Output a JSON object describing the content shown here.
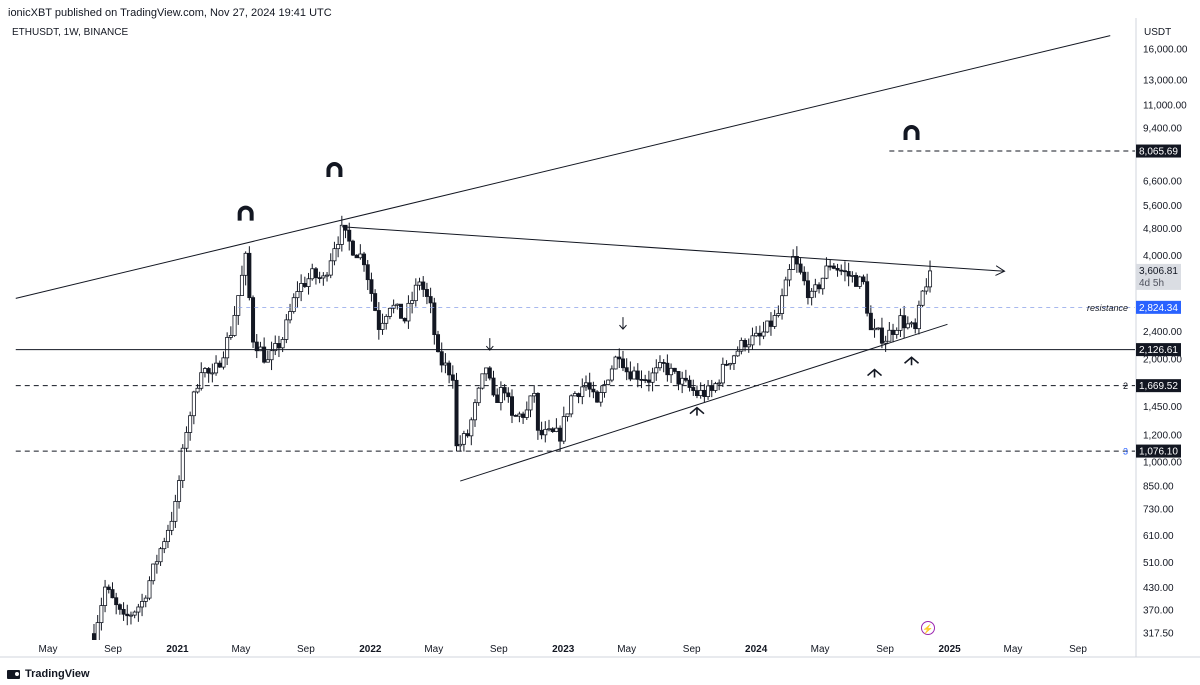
{
  "header": {
    "published": "ionicXBT published on TradingView.com, Nov 27, 2024 19:41 UTC",
    "symbol": "ETHUSDT, 1W, BINANCE",
    "currency": "USDT"
  },
  "footer": {
    "brand": "TradingView"
  },
  "chart_data": {
    "type": "candlestick",
    "symbol": "ETHUSDT",
    "interval": "1W",
    "exchange": "BINANCE",
    "scale": "log",
    "ylim": [
      300,
      18000
    ],
    "y_ticks": [
      {
        "value": 16000,
        "label": "16,000.00"
      },
      {
        "value": 13000,
        "label": "13,000.00"
      },
      {
        "value": 11000,
        "label": "11,000.00"
      },
      {
        "value": 9400,
        "label": "9,400.00"
      },
      {
        "value": 6600,
        "label": "6,600.00"
      },
      {
        "value": 5600,
        "label": "5,600.00"
      },
      {
        "value": 4800,
        "label": "4,800.00"
      },
      {
        "value": 4000,
        "label": "4,000.00"
      },
      {
        "value": 2400,
        "label": "2,400.00"
      },
      {
        "value": 2000,
        "label": "2,000.00"
      },
      {
        "value": 1450,
        "label": "1,450.00"
      },
      {
        "value": 1200,
        "label": "1,200.00"
      },
      {
        "value": 1000,
        "label": "1,000.00"
      },
      {
        "value": 850,
        "label": "850.00"
      },
      {
        "value": 730,
        "label": "730.00"
      },
      {
        "value": 610,
        "label": "610.00"
      },
      {
        "value": 510,
        "label": "510.00"
      },
      {
        "value": 430,
        "label": "430.00"
      },
      {
        "value": 370,
        "label": "370.00"
      },
      {
        "value": 317.5,
        "label": "317.50"
      }
    ],
    "x_ticks": [
      {
        "date": "2020-05-01",
        "label": "May",
        "bold": false
      },
      {
        "date": "2020-09-01",
        "label": "Sep",
        "bold": false
      },
      {
        "date": "2021-01-01",
        "label": "2021",
        "bold": true
      },
      {
        "date": "2021-05-01",
        "label": "May",
        "bold": false
      },
      {
        "date": "2021-09-01",
        "label": "Sep",
        "bold": false
      },
      {
        "date": "2022-01-01",
        "label": "2022",
        "bold": true
      },
      {
        "date": "2022-05-01",
        "label": "May",
        "bold": false
      },
      {
        "date": "2022-09-01",
        "label": "Sep",
        "bold": false
      },
      {
        "date": "2023-01-01",
        "label": "2023",
        "bold": true
      },
      {
        "date": "2023-05-01",
        "label": "May",
        "bold": false
      },
      {
        "date": "2023-09-01",
        "label": "Sep",
        "bold": false
      },
      {
        "date": "2024-01-01",
        "label": "2024",
        "bold": true
      },
      {
        "date": "2024-05-01",
        "label": "May",
        "bold": false
      },
      {
        "date": "2024-09-01",
        "label": "Sep",
        "bold": false
      },
      {
        "date": "2025-01-01",
        "label": "2025",
        "bold": true
      },
      {
        "date": "2025-05-01",
        "label": "May",
        "bold": false
      },
      {
        "date": "2025-09-01",
        "label": "Sep",
        "bold": false
      }
    ],
    "anchors": [
      {
        "date": "2020-07-27",
        "close": 316
      },
      {
        "date": "2020-08-17",
        "close": 430
      },
      {
        "date": "2020-09-21",
        "close": 345
      },
      {
        "date": "2020-10-26",
        "close": 390
      },
      {
        "date": "2020-11-23",
        "close": 520
      },
      {
        "date": "2020-12-28",
        "close": 740
      },
      {
        "date": "2021-01-18",
        "close": 1250
      },
      {
        "date": "2021-02-15",
        "close": 1900
      },
      {
        "date": "2021-03-08",
        "close": 1750
      },
      {
        "date": "2021-04-12",
        "close": 2400
      },
      {
        "date": "2021-05-10",
        "close": 3900
      },
      {
        "date": "2021-05-24",
        "close": 2300
      },
      {
        "date": "2021-06-21",
        "close": 1950
      },
      {
        "date": "2021-07-19",
        "close": 2300
      },
      {
        "date": "2021-08-16",
        "close": 3200
      },
      {
        "date": "2021-09-13",
        "close": 3500
      },
      {
        "date": "2021-10-04",
        "close": 3400
      },
      {
        "date": "2021-10-25",
        "close": 4300
      },
      {
        "date": "2021-11-08",
        "close": 4700
      },
      {
        "date": "2021-11-29",
        "close": 4200
      },
      {
        "date": "2021-12-20",
        "close": 3900
      },
      {
        "date": "2022-01-17",
        "close": 2500
      },
      {
        "date": "2022-02-07",
        "close": 2900
      },
      {
        "date": "2022-03-07",
        "close": 2600
      },
      {
        "date": "2022-04-04",
        "close": 3400
      },
      {
        "date": "2022-04-25",
        "close": 2800
      },
      {
        "date": "2022-05-09",
        "close": 2000
      },
      {
        "date": "2022-06-06",
        "close": 1800
      },
      {
        "date": "2022-06-13",
        "close": 1100
      },
      {
        "date": "2022-07-04",
        "close": 1200
      },
      {
        "date": "2022-08-08",
        "close": 1900
      },
      {
        "date": "2022-08-22",
        "close": 1500
      },
      {
        "date": "2022-09-12",
        "close": 1650
      },
      {
        "date": "2022-09-26",
        "close": 1330
      },
      {
        "date": "2022-10-24",
        "close": 1400
      },
      {
        "date": "2022-11-07",
        "close": 1600
      },
      {
        "date": "2022-11-14",
        "close": 1200
      },
      {
        "date": "2022-12-26",
        "close": 1200
      },
      {
        "date": "2023-01-16",
        "close": 1550
      },
      {
        "date": "2023-02-13",
        "close": 1700
      },
      {
        "date": "2023-03-06",
        "close": 1450
      },
      {
        "date": "2023-03-27",
        "close": 1800
      },
      {
        "date": "2023-04-17",
        "close": 2100
      },
      {
        "date": "2023-05-01",
        "close": 1850
      },
      {
        "date": "2023-06-12",
        "close": 1750
      },
      {
        "date": "2023-07-10",
        "close": 1900
      },
      {
        "date": "2023-08-14",
        "close": 1700
      },
      {
        "date": "2023-09-11",
        "close": 1580
      },
      {
        "date": "2023-10-09",
        "close": 1600
      },
      {
        "date": "2023-11-06",
        "close": 1950
      },
      {
        "date": "2023-12-11",
        "close": 2250
      },
      {
        "date": "2024-01-08",
        "close": 2300
      },
      {
        "date": "2024-02-12",
        "close": 2700
      },
      {
        "date": "2024-03-11",
        "close": 3900
      },
      {
        "date": "2024-04-15",
        "close": 3000
      },
      {
        "date": "2024-05-20",
        "close": 3800
      },
      {
        "date": "2024-06-17",
        "close": 3550
      },
      {
        "date": "2024-07-22",
        "close": 3300
      },
      {
        "date": "2024-08-05",
        "close": 2400
      },
      {
        "date": "2024-09-02",
        "close": 2300
      },
      {
        "date": "2024-09-30",
        "close": 2600
      },
      {
        "date": "2024-10-28",
        "close": 2400
      },
      {
        "date": "2024-11-11",
        "close": 3100
      },
      {
        "date": "2024-11-25",
        "close": 3607
      }
    ],
    "horizontal_levels": [
      {
        "value": 8065.69,
        "label": "8,065.69",
        "style": "dashed",
        "from": "2024-09-09",
        "note": ""
      },
      {
        "value": 2824.34,
        "label": "2,824.34",
        "style": "dashed-blue",
        "from": "2021-04-26",
        "note": "resistance"
      },
      {
        "value": 2126.61,
        "label": "2,126.61",
        "style": "solid",
        "from": "2020-03-01",
        "note": ""
      },
      {
        "value": 1669.52,
        "label": "1,669.52",
        "style": "dashed",
        "from": "2020-03-01",
        "note": "2"
      },
      {
        "value": 1076.1,
        "label": "1,076.10",
        "style": "dashed",
        "from": "2020-03-01",
        "note": "3"
      }
    ],
    "last_price": {
      "value": 3606.81,
      "label": "3,606.81",
      "countdown": "4d 5h"
    },
    "trendlines": [
      {
        "from": {
          "date": "2020-03-01",
          "value": 3000
        },
        "to": {
          "date": "2025-11-01",
          "value": 17500
        },
        "arrow": false
      },
      {
        "from": {
          "date": "2021-11-08",
          "value": 4850
        },
        "to": {
          "date": "2025-04-15",
          "value": 3600
        },
        "arrow": true
      },
      {
        "from": {
          "date": "2022-06-20",
          "value": 880
        },
        "to": {
          "date": "2024-12-28",
          "value": 2520
        },
        "arrow": false
      }
    ],
    "annotations": [
      {
        "kind": "magnet",
        "date": "2021-05-10",
        "value": 5300
      },
      {
        "kind": "magnet",
        "date": "2021-10-25",
        "value": 7100
      },
      {
        "kind": "magnet",
        "date": "2024-10-21",
        "value": 9100
      },
      {
        "kind": "arrow-down",
        "date": "2022-08-15",
        "value": 2120
      },
      {
        "kind": "arrow-down",
        "date": "2023-04-24",
        "value": 2440
      },
      {
        "kind": "arrow-up",
        "date": "2023-09-11",
        "value": 1440
      },
      {
        "kind": "arrow-up",
        "date": "2024-08-12",
        "value": 1860
      },
      {
        "kind": "arrow-up",
        "date": "2024-10-21",
        "value": 2020
      }
    ]
  }
}
